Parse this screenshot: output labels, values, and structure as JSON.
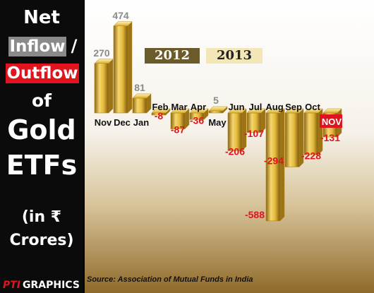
{
  "panel": {
    "line_net": "Net",
    "line_inflow": "Inflow",
    "line_slash": "/",
    "line_outflow": "Outflow",
    "line_of": "of",
    "line_gold": "Gold",
    "line_etfs": "ETFs",
    "unit_line1": "(in ₹",
    "unit_line2": "Crores)"
  },
  "brand": {
    "pti": "PTI",
    "graphics": "GRAPHICS"
  },
  "years": {
    "first": "2012",
    "second": "2013"
  },
  "source": "Source: Association of Mutual Funds in India",
  "colors": {
    "highlight": "#e0141e",
    "positive_label": "#8a8a8a",
    "negative_label": "#e0141e",
    "gold_light": "#f2d36a",
    "gold_dark": "#b8860b"
  },
  "chart_data": {
    "type": "bar",
    "categories": [
      "Nov",
      "Dec",
      "Jan",
      "Feb",
      "Mar",
      "Apr",
      "May",
      "Jun",
      "Jul",
      "Aug",
      "Sep",
      "Oct",
      "NOV"
    ],
    "values": [
      270,
      474,
      81,
      -8,
      -87,
      -36,
      5,
      -206,
      -107,
      -588,
      -294,
      -228,
      -131
    ],
    "value_labels": [
      "270",
      "474",
      "81",
      "-8",
      "-87",
      "-36",
      "5",
      "-206",
      "-107",
      "-588",
      "-294",
      "-228",
      "-131"
    ],
    "highlight_category": "NOV"
  }
}
